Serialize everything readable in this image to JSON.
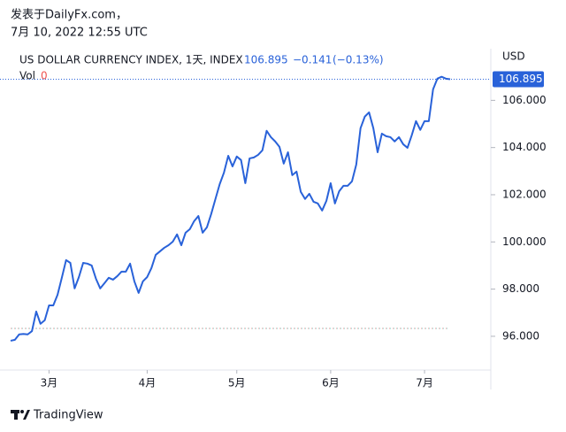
{
  "header": {
    "source": "发表于DailyFx.com，",
    "timestamp": "7月 10, 2022 12:55 UTC"
  },
  "chart_data": {
    "type": "line",
    "title": "US DOLLAR CURRENCY INDEX, 1天, INDEX",
    "last_price": "106.895",
    "change": "−0.141",
    "change_pct": "(−0.13%)",
    "volume_label": "Vol",
    "volume_value": "0",
    "currency": "USD",
    "categories": [
      null,
      null,
      null,
      null,
      null,
      null,
      null,
      null,
      null,
      "3月",
      null,
      null,
      null,
      null,
      null,
      null,
      null,
      null,
      null,
      null,
      null,
      null,
      null,
      null,
      null,
      null,
      null,
      null,
      null,
      null,
      null,
      null,
      "4月",
      null,
      null,
      null,
      null,
      null,
      null,
      null,
      null,
      null,
      null,
      null,
      null,
      null,
      null,
      null,
      null,
      null,
      null,
      null,
      null,
      "5月",
      null,
      null,
      null,
      null,
      null,
      null,
      null,
      null,
      null,
      null,
      null,
      null,
      null,
      null,
      null,
      null,
      null,
      null,
      null,
      null,
      null,
      "6月",
      null,
      null,
      null,
      null,
      null,
      null,
      null,
      null,
      null,
      null,
      null,
      null,
      null,
      null,
      null,
      null,
      null,
      null,
      null,
      null,
      null,
      "7月",
      null,
      null,
      null,
      null,
      null,
      null
    ],
    "series": [
      {
        "name": "US DOLLAR CURRENCY INDEX",
        "color": "#2962d9",
        "values": [
          95.81,
          95.85,
          96.08,
          96.1,
          96.08,
          96.22,
          97.05,
          96.53,
          96.68,
          97.31,
          97.31,
          97.76,
          98.48,
          99.23,
          99.11,
          98.03,
          98.51,
          99.11,
          99.08,
          99.0,
          98.44,
          98.03,
          98.25,
          98.48,
          98.4,
          98.55,
          98.74,
          98.74,
          99.08,
          98.33,
          97.84,
          98.33,
          98.51,
          98.89,
          99.45,
          99.6,
          99.75,
          99.86,
          100.01,
          100.32,
          99.86,
          100.39,
          100.54,
          100.88,
          101.1,
          100.39,
          100.62,
          101.18,
          101.82,
          102.45,
          102.94,
          103.65,
          103.2,
          103.62,
          103.47,
          102.49,
          103.54,
          103.58,
          103.69,
          103.88,
          104.71,
          104.44,
          104.26,
          104.03,
          103.32,
          103.8,
          102.83,
          102.98,
          102.12,
          101.82,
          102.04,
          101.7,
          101.63,
          101.33,
          101.74,
          102.49,
          101.63,
          102.15,
          102.38,
          102.38,
          102.57,
          103.28,
          104.82,
          105.31,
          105.49,
          104.82,
          103.8,
          104.59,
          104.48,
          104.44,
          104.26,
          104.44,
          104.14,
          103.99,
          104.52,
          105.12,
          104.75,
          105.12,
          105.12,
          106.47,
          106.92,
          107.0,
          106.92,
          106.895
        ]
      }
    ],
    "ylim": [
      94.57,
      108.19
    ],
    "yticks": [
      {
        "value": 96,
        "label": "96.000"
      },
      {
        "value": 98,
        "label": "98.000"
      },
      {
        "value": 100,
        "label": "100.000"
      },
      {
        "value": 102,
        "label": "102.000"
      },
      {
        "value": 104,
        "label": "104.000"
      },
      {
        "value": 106,
        "label": "106.000"
      }
    ],
    "grid": false
  },
  "footer": {
    "brand": "TradingView"
  }
}
